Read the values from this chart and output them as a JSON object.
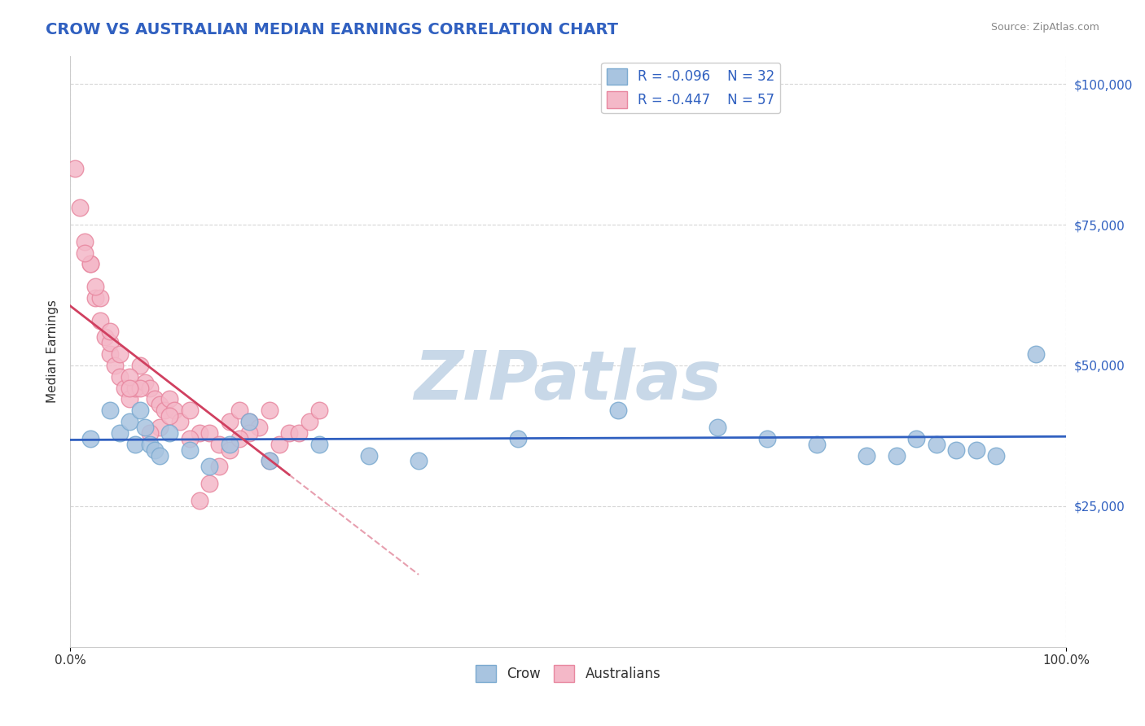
{
  "title": "CROW VS AUSTRALIAN MEDIAN EARNINGS CORRELATION CHART",
  "source_text": "Source: ZipAtlas.com",
  "xlabel": "",
  "ylabel": "Median Earnings",
  "xlim": [
    0,
    1.0
  ],
  "ylim": [
    0,
    105000
  ],
  "xtick_labels": [
    "0.0%",
    "100.0%"
  ],
  "ytick_values": [
    25000,
    50000,
    75000,
    100000
  ],
  "ytick_labels": [
    "$25,000",
    "$50,000",
    "$75,000",
    "$100,000"
  ],
  "crow_R": -0.096,
  "crow_N": 32,
  "australians_R": -0.447,
  "australians_N": 57,
  "crow_color": "#a8c4e0",
  "crow_edge_color": "#7baad0",
  "australians_color": "#f4b8c8",
  "australians_edge_color": "#e888a0",
  "crow_line_color": "#3060c0",
  "australians_line_color": "#d04060",
  "legend_color_crow": "#a8c4e0",
  "legend_color_australians": "#f4b8c8",
  "legend_text_color": "#3060c0",
  "watermark_text": "ZIPatlas",
  "watermark_color": "#c8d8e8",
  "grid_color": "#cccccc",
  "background_color": "#ffffff",
  "crow_x": [
    0.02,
    0.04,
    0.05,
    0.06,
    0.065,
    0.07,
    0.075,
    0.08,
    0.085,
    0.09,
    0.1,
    0.12,
    0.14,
    0.16,
    0.18,
    0.2,
    0.25,
    0.3,
    0.35,
    0.45,
    0.55,
    0.65,
    0.7,
    0.75,
    0.8,
    0.83,
    0.85,
    0.87,
    0.89,
    0.91,
    0.93,
    0.97
  ],
  "crow_y": [
    37000,
    42000,
    38000,
    40000,
    36000,
    42000,
    39000,
    36000,
    35000,
    34000,
    38000,
    35000,
    32000,
    36000,
    40000,
    33000,
    36000,
    34000,
    33000,
    37000,
    42000,
    39000,
    37000,
    36000,
    34000,
    34000,
    37000,
    36000,
    35000,
    35000,
    34000,
    52000
  ],
  "australians_x": [
    0.005,
    0.01,
    0.015,
    0.02,
    0.025,
    0.03,
    0.035,
    0.04,
    0.04,
    0.045,
    0.05,
    0.055,
    0.06,
    0.065,
    0.07,
    0.075,
    0.08,
    0.085,
    0.09,
    0.095,
    0.1,
    0.105,
    0.11,
    0.12,
    0.13,
    0.14,
    0.15,
    0.16,
    0.17,
    0.18,
    0.19,
    0.2,
    0.21,
    0.22,
    0.23,
    0.24,
    0.25,
    0.09,
    0.1,
    0.12,
    0.06,
    0.07,
    0.08,
    0.03,
    0.025,
    0.02,
    0.015,
    0.04,
    0.05,
    0.06,
    0.18,
    0.2,
    0.13,
    0.14,
    0.15,
    0.16,
    0.17
  ],
  "australians_y": [
    85000,
    78000,
    72000,
    68000,
    62000,
    58000,
    55000,
    52000,
    54000,
    50000,
    48000,
    46000,
    44000,
    46000,
    50000,
    47000,
    46000,
    44000,
    43000,
    42000,
    44000,
    42000,
    40000,
    42000,
    38000,
    38000,
    36000,
    40000,
    42000,
    40000,
    39000,
    42000,
    36000,
    38000,
    38000,
    40000,
    42000,
    39000,
    41000,
    37000,
    48000,
    46000,
    38000,
    62000,
    64000,
    68000,
    70000,
    56000,
    52000,
    46000,
    38000,
    33000,
    26000,
    29000,
    32000,
    35000,
    37000
  ]
}
